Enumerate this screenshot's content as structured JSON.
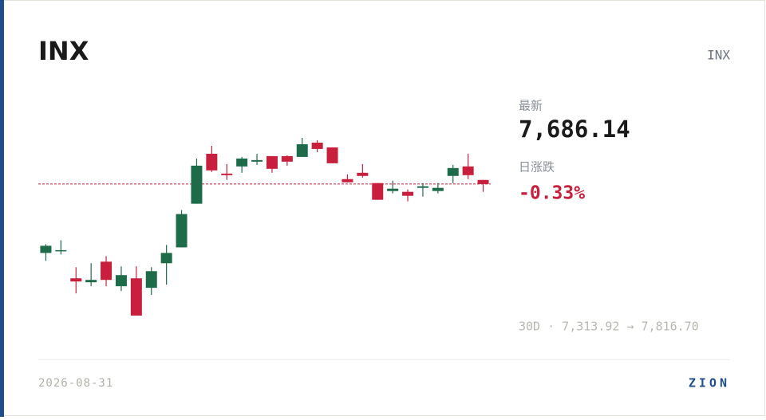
{
  "header": {
    "title": "INX",
    "ticker": "INX"
  },
  "stats": {
    "last_label": "最新",
    "last_value": "7,686.14",
    "change_label": "日涨跌",
    "change_value": "-0.33%",
    "range": "30D · 7,313.92 → 7,816.70"
  },
  "footer": {
    "date": "2026-08-31",
    "brand": "ZION"
  },
  "chart_data": {
    "type": "candlestick",
    "open": [
      7491.2,
      7498.0,
      7419.4,
      7408.2,
      7466.5,
      7397.0,
      7419.4,
      7392.5,
      7462.1,
      7506.9,
      7630.4,
      7771.8,
      7715.7,
      7735.9,
      7749.4,
      7765.1,
      7765.1,
      7762.8,
      7803.2,
      7789.8,
      7700.0,
      7717.9,
      7688.8,
      7666.3,
      7664.1,
      7675.3,
      7666.3,
      7709.0,
      7735.9,
      7697.7
    ],
    "high": [
      7515.9,
      7527.1,
      7450.8,
      7462.1,
      7482.3,
      7453.1,
      7453.1,
      7450.8,
      7513.7,
      7612.4,
      7758.3,
      7794.3,
      7742.6,
      7762.8,
      7771.8,
      7765.1,
      7767.3,
      7816.7,
      7810.0,
      7789.8,
      7713.4,
      7742.6,
      7688.8,
      7695.5,
      7670.8,
      7688.8,
      7688.8,
      7740.4,
      7771.8,
      7697.7
    ],
    "low": [
      7468.8,
      7486.7,
      7376.8,
      7397.0,
      7397.0,
      7383.5,
      7313.92,
      7372.3,
      7401.4,
      7506.9,
      7630.4,
      7720.2,
      7697.7,
      7717.9,
      7740.4,
      7717.9,
      7738.1,
      7762.8,
      7776.3,
      7744.9,
      7691.0,
      7704.5,
      7641.6,
      7659.6,
      7637.1,
      7650.6,
      7659.6,
      7688.8,
      7700.0,
      7664.1
    ],
    "close": [
      7511.4,
      7499.0,
      7410.4,
      7414.9,
      7414.9,
      7428.4,
      7313.92,
      7439.6,
      7491.2,
      7601.2,
      7738.1,
      7724.7,
      7711.2,
      7758.3,
      7753.9,
      7729.2,
      7749.4,
      7798.7,
      7785.3,
      7744.9,
      7691.0,
      7709.0,
      7641.6,
      7673.0,
      7652.8,
      7679.8,
      7675.3,
      7731.4,
      7711.2,
      7686.14
    ],
    "up_color": "#1e6b4a",
    "down_color": "#c8203c",
    "reference_line": {
      "color": "#c8203c",
      "style": "dashed"
    }
  }
}
